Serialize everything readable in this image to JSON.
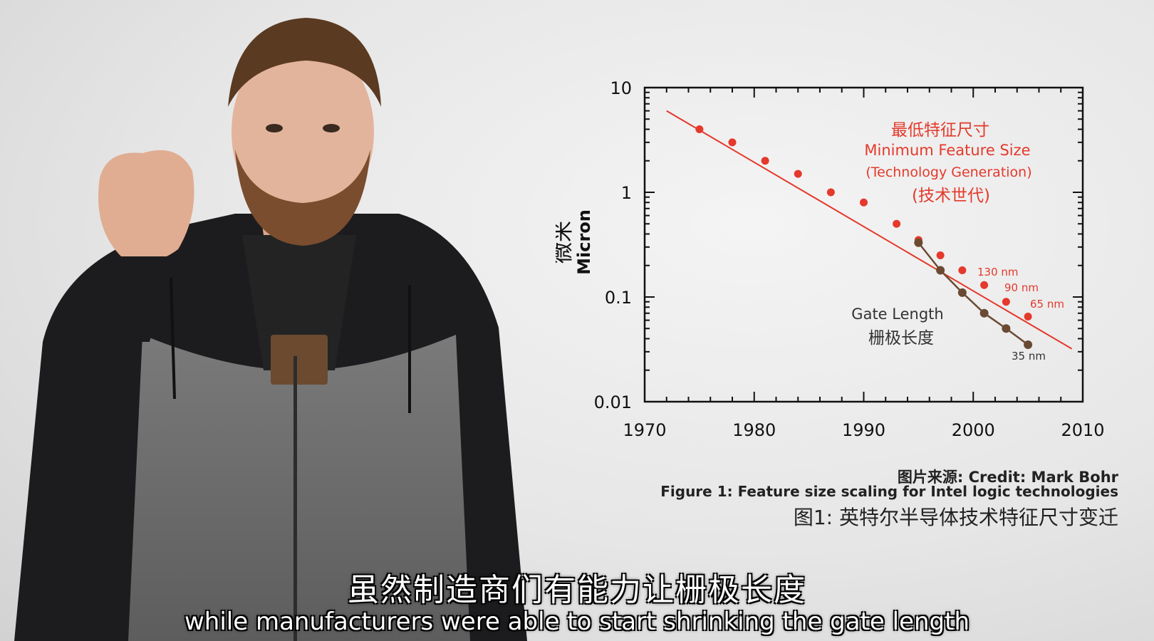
{
  "captions": {
    "credit": "图片来源: Credit: Mark Bohr",
    "figure_en": "Figure 1: Feature size scaling for Intel logic technologies",
    "figure_zh": "图1: 英特尔半导体技术特征尺寸变迁"
  },
  "subtitles": {
    "zh": "虽然制造商们有能力让栅极长度",
    "en": "while manufacturers were able to start shrinking the gate length"
  },
  "colors": {
    "feature": "#e4392b",
    "gate": "#6a4a32",
    "frame": "#111111"
  },
  "chart_data": {
    "type": "scatter",
    "scale_y": "log",
    "xlim": [
      1970,
      2010
    ],
    "ylim": [
      0.01,
      10
    ],
    "x_ticks": [
      "1970",
      "1980",
      "1990",
      "2000",
      "2010"
    ],
    "y_ticks": [
      "10",
      "1",
      "0.1",
      "0.01"
    ],
    "ylabel_zh": "微米",
    "ylabel_en": "Micron",
    "series_labels": {
      "feature_zh": "最低特征尺寸",
      "feature_en": "Minimum Feature Size",
      "feature_en2": "(Technology Generation)",
      "feature_zh2": "(技术世代)",
      "gate_en": "Gate Length",
      "gate_zh": "栅极长度"
    },
    "annotations": [
      "130 nm",
      "90 nm",
      "65 nm",
      "35 nm"
    ],
    "feature_trend": [
      [
        1972,
        6.0
      ],
      [
        2009,
        0.032
      ]
    ],
    "feature_points": [
      [
        1975,
        4.0
      ],
      [
        1978,
        3.0
      ],
      [
        1981,
        2.0
      ],
      [
        1984,
        1.5
      ],
      [
        1987,
        1.0
      ],
      [
        1990,
        0.8
      ],
      [
        1993,
        0.5
      ],
      [
        1995,
        0.35
      ],
      [
        1997,
        0.25
      ],
      [
        1999,
        0.18
      ],
      [
        2001,
        0.13
      ],
      [
        2003,
        0.09
      ],
      [
        2005,
        0.065
      ]
    ],
    "gate_points": [
      [
        1995,
        0.33
      ],
      [
        1997,
        0.18
      ],
      [
        1999,
        0.11
      ],
      [
        2001,
        0.07
      ],
      [
        2003,
        0.05
      ],
      [
        2005,
        0.035
      ]
    ]
  }
}
